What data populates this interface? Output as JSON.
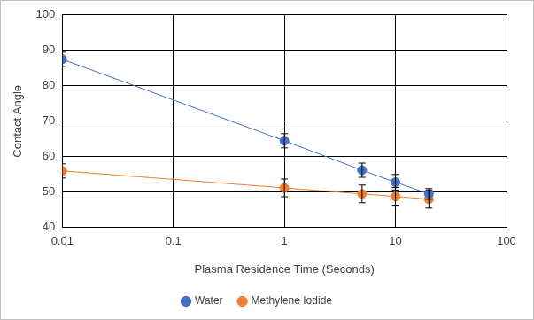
{
  "chart_data": {
    "type": "line",
    "x_label": "Plasma Residence Time (Seconds)",
    "y_label": "Contact Angle",
    "x": [
      0.01,
      1,
      5,
      10,
      20
    ],
    "series": [
      {
        "name": "Water",
        "color": "#4472c4",
        "marker": "circle",
        "line_style": "solid",
        "values": [
          87.5,
          64.5,
          56.2,
          52.8,
          49.5
        ],
        "errors": [
          2,
          2,
          2,
          2.2,
          1.5
        ]
      },
      {
        "name": "Methylene Iodide",
        "color": "#ed7d31",
        "marker": "circle",
        "line_style": "solid",
        "values": [
          56,
          51.2,
          49.5,
          48.8,
          48
        ],
        "errors": [
          2,
          2.5,
          2.5,
          2.5,
          2.5
        ]
      }
    ],
    "log": "x",
    "xlim": [
      0.01,
      100
    ],
    "xticks": [
      0.01,
      0.1,
      1,
      10,
      100
    ],
    "ylim": [
      40,
      100
    ],
    "yticks": [
      40,
      50,
      60,
      70,
      80,
      90,
      100
    ],
    "grid": true,
    "legend": "bottom"
  }
}
